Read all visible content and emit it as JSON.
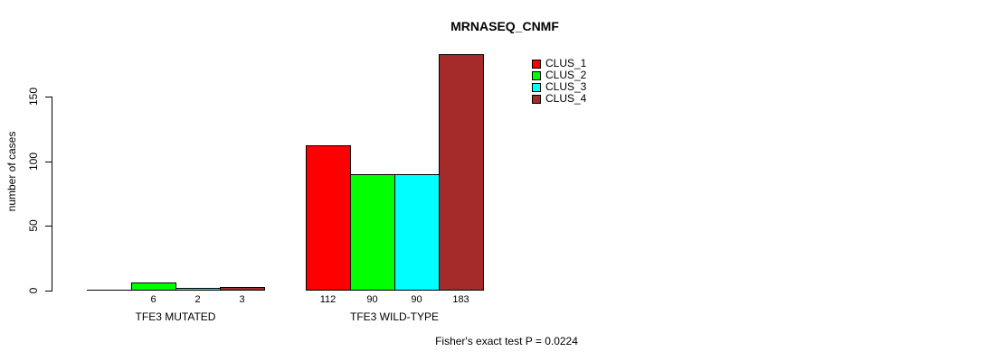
{
  "chart_data": {
    "type": "bar",
    "title": "MRNASEQ_CNMF",
    "ylabel": "number of cases",
    "xlabel": "",
    "ylim": [
      0,
      190
    ],
    "y_ticks": [
      0,
      50,
      100,
      150
    ],
    "grid": false,
    "background": "#ffffff",
    "text_color": "#000000",
    "bar_edge_color": "#000000",
    "categories": [
      "TFE3 MUTATED",
      "TFE3 WILD-TYPE"
    ],
    "series": [
      {
        "name": "CLUS_1",
        "color": "#ff0000",
        "values": [
          0,
          112
        ]
      },
      {
        "name": "CLUS_2",
        "color": "#00ff00",
        "values": [
          6,
          90
        ]
      },
      {
        "name": "CLUS_3",
        "color": "#00ffff",
        "values": [
          2,
          90
        ]
      },
      {
        "name": "CLUS_4",
        "color": "#a52a2a",
        "values": [
          3,
          183
        ]
      }
    ],
    "bar_value_labels": [
      [
        "",
        "6",
        "2",
        "3"
      ],
      [
        "112",
        "90",
        "90",
        "183"
      ]
    ],
    "legend": {
      "position": "top-right",
      "entries": [
        "CLUS_1",
        "CLUS_2",
        "CLUS_3",
        "CLUS_4"
      ]
    },
    "annotation": "Fisher's exact test P = 0.0224"
  }
}
